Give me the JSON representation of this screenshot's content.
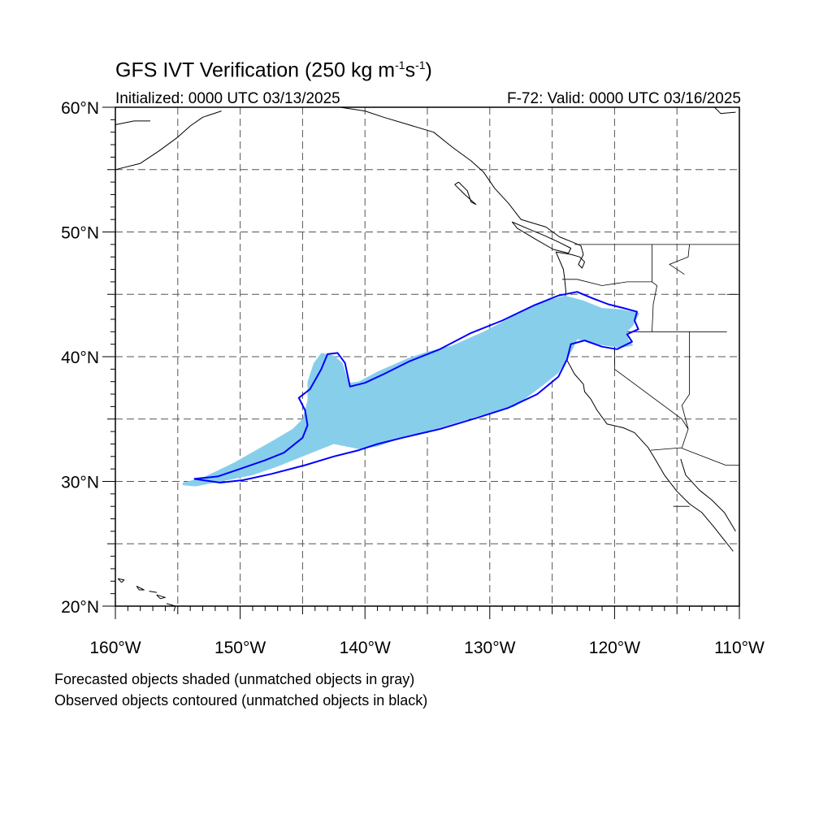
{
  "title": {
    "main": "GFS IVT Verification (250 kg m",
    "sup1": "-1",
    "mid": "s",
    "sup2": "-1",
    "end": ")"
  },
  "subtitle_left": "Initialized: 0000 UTC 03/13/2025",
  "subtitle_right": "F-72: Valid: 0000 UTC 03/16/2025",
  "notes": [
    "Forecasted objects shaded (unmatched objects in gray)",
    "Observed objects contoured (unmatched objects in black)"
  ],
  "map": {
    "lon_range": [
      -160,
      -110
    ],
    "lat_range": [
      20,
      60
    ],
    "lat_ticks": [
      {
        "value": 60,
        "label": "60°N"
      },
      {
        "value": 50,
        "label": "50°N"
      },
      {
        "value": 40,
        "label": "40°N"
      },
      {
        "value": 30,
        "label": "30°N"
      },
      {
        "value": 20,
        "label": "20°N"
      }
    ],
    "lon_ticks": [
      {
        "value": -160,
        "label": "160°W"
      },
      {
        "value": -150,
        "label": "150°W"
      },
      {
        "value": -140,
        "label": "140°W"
      },
      {
        "value": -130,
        "label": "130°W"
      },
      {
        "value": -120,
        "label": "120°W"
      },
      {
        "value": -110,
        "label": "110°W"
      }
    ],
    "grid_lons": [
      -155,
      -150,
      -145,
      -140,
      -135,
      -130,
      -125,
      -120,
      -115
    ],
    "grid_lats": [
      25,
      30,
      35,
      40,
      45,
      50,
      55
    ],
    "forecast_color": "#87ceeb",
    "observed_color": "#0000ff",
    "forecast_object": [
      [
        -154.6,
        29.7
      ],
      [
        -153.6,
        29.6
      ],
      [
        -151.5,
        30.0
      ],
      [
        -149.0,
        30.5
      ],
      [
        -147.0,
        31.2
      ],
      [
        -144.5,
        32.2
      ],
      [
        -142.5,
        33.0
      ],
      [
        -140.5,
        32.6
      ],
      [
        -139.0,
        32.8
      ],
      [
        -137.0,
        33.5
      ],
      [
        -134.0,
        34.3
      ],
      [
        -131.0,
        35.2
      ],
      [
        -128.0,
        36.0
      ],
      [
        -126.0,
        37.5
      ],
      [
        -124.5,
        38.7
      ],
      [
        -123.8,
        39.8
      ],
      [
        -123.3,
        40.7
      ],
      [
        -123.0,
        41.4
      ],
      [
        -121.5,
        41.0
      ],
      [
        -119.5,
        40.7
      ],
      [
        -118.5,
        40.9
      ],
      [
        -118.9,
        41.4
      ],
      [
        -119.0,
        42.0
      ],
      [
        -118.5,
        42.5
      ],
      [
        -118.0,
        43.5
      ],
      [
        -119.5,
        43.8
      ],
      [
        -121.0,
        43.9
      ],
      [
        -122.5,
        44.5
      ],
      [
        -124.0,
        44.9
      ],
      [
        -126.0,
        44.3
      ],
      [
        -128.0,
        43.3
      ],
      [
        -130.5,
        42.0
      ],
      [
        -133.0,
        40.9
      ],
      [
        -135.0,
        40.4
      ],
      [
        -136.5,
        39.9
      ],
      [
        -139.0,
        38.8
      ],
      [
        -140.5,
        38.0
      ],
      [
        -141.3,
        37.9
      ],
      [
        -141.8,
        39.5
      ],
      [
        -142.5,
        40.1
      ],
      [
        -143.5,
        40.3
      ],
      [
        -144.1,
        39.5
      ],
      [
        -144.6,
        38.0
      ],
      [
        -144.6,
        36.5
      ],
      [
        -145.0,
        35.0
      ],
      [
        -145.8,
        34.2
      ],
      [
        -147.5,
        33.2
      ],
      [
        -150.5,
        31.5
      ],
      [
        -153.0,
        30.3
      ],
      [
        -154.6,
        29.9
      ]
    ],
    "observed_contour": [
      [
        -153.7,
        30.2
      ],
      [
        -151.8,
        30.4
      ],
      [
        -150.0,
        31.0
      ],
      [
        -148.0,
        31.7
      ],
      [
        -146.5,
        32.3
      ],
      [
        -145.0,
        33.5
      ],
      [
        -144.6,
        34.5
      ],
      [
        -144.8,
        35.7
      ],
      [
        -145.3,
        36.7
      ],
      [
        -144.4,
        37.4
      ],
      [
        -143.5,
        39.0
      ],
      [
        -143.0,
        40.2
      ],
      [
        -142.2,
        40.3
      ],
      [
        -141.6,
        39.5
      ],
      [
        -141.2,
        37.6
      ],
      [
        -140.0,
        37.9
      ],
      [
        -138.5,
        38.6
      ],
      [
        -136.5,
        39.6
      ],
      [
        -134.0,
        40.6
      ],
      [
        -131.5,
        41.9
      ],
      [
        -129.0,
        42.9
      ],
      [
        -126.5,
        44.1
      ],
      [
        -124.5,
        44.9
      ],
      [
        -123.0,
        45.2
      ],
      [
        -121.8,
        44.7
      ],
      [
        -120.5,
        44.2
      ],
      [
        -119.3,
        43.9
      ],
      [
        -118.2,
        43.6
      ],
      [
        -118.4,
        42.9
      ],
      [
        -118.1,
        42.2
      ],
      [
        -119.0,
        41.8
      ],
      [
        -118.6,
        41.2
      ],
      [
        -119.8,
        40.6
      ],
      [
        -121.0,
        40.8
      ],
      [
        -122.4,
        41.3
      ],
      [
        -123.5,
        41.0
      ],
      [
        -123.8,
        39.8
      ],
      [
        -124.5,
        38.4
      ],
      [
        -126.2,
        37.0
      ],
      [
        -128.5,
        35.9
      ],
      [
        -131.0,
        35.1
      ],
      [
        -134.0,
        34.2
      ],
      [
        -137.0,
        33.5
      ],
      [
        -139.0,
        33.0
      ],
      [
        -140.5,
        32.5
      ],
      [
        -142.5,
        32.0
      ],
      [
        -144.8,
        31.3
      ],
      [
        -147.5,
        30.6
      ],
      [
        -149.8,
        30.1
      ],
      [
        -151.6,
        29.9
      ],
      [
        -153.7,
        30.2
      ]
    ],
    "coastlines": [
      [
        [
          -124.7,
          48.4
        ],
        [
          -124.1,
          47.0
        ],
        [
          -124.0,
          46.2
        ],
        [
          -123.9,
          45.2
        ],
        [
          -124.1,
          43.7
        ],
        [
          -124.5,
          42.8
        ],
        [
          -124.2,
          41.7
        ],
        [
          -124.1,
          40.8
        ],
        [
          -123.8,
          39.7
        ],
        [
          -123.2,
          38.6
        ],
        [
          -122.5,
          37.8
        ],
        [
          -122.4,
          37.2
        ],
        [
          -121.9,
          36.6
        ],
        [
          -121.4,
          35.7
        ],
        [
          -120.6,
          34.6
        ],
        [
          -119.3,
          34.3
        ],
        [
          -118.4,
          33.9
        ],
        [
          -117.3,
          32.7
        ],
        [
          -116.7,
          31.7
        ],
        [
          -116.0,
          30.5
        ],
        [
          -115.0,
          29.2
        ],
        [
          -114.0,
          28.2
        ],
        [
          -113.0,
          27.5
        ],
        [
          -112.0,
          26.3
        ],
        [
          -110.5,
          24.4
        ]
      ],
      [
        [
          -114.7,
          31.8
        ],
        [
          -114.3,
          30.5
        ],
        [
          -113.2,
          29.3
        ],
        [
          -112.2,
          28.5
        ],
        [
          -111.2,
          27.5
        ],
        [
          -110.3,
          26.0
        ]
      ],
      [
        [
          -124.7,
          48.4
        ],
        [
          -123.5,
          48.2
        ],
        [
          -122.8,
          48.0
        ],
        [
          -122.4,
          47.6
        ],
        [
          -122.6,
          47.1
        ],
        [
          -122.9,
          47.4
        ],
        [
          -122.5,
          48.2
        ],
        [
          -122.7,
          48.9
        ],
        [
          -123.4,
          49.2
        ],
        [
          -124.4,
          49.6
        ],
        [
          -125.5,
          50.4
        ],
        [
          -127.5,
          51.0
        ],
        [
          -128.5,
          52.3
        ],
        [
          -129.6,
          53.5
        ],
        [
          -130.5,
          54.8
        ],
        [
          -131.5,
          55.7
        ],
        [
          -133.0,
          56.8
        ],
        [
          -134.5,
          58.0
        ],
        [
          -136.5,
          58.6
        ],
        [
          -138.5,
          59.2
        ],
        [
          -140.0,
          59.7
        ],
        [
          -142.0,
          60.0
        ]
      ],
      [
        [
          -124.9,
          48.6
        ],
        [
          -123.7,
          48.3
        ],
        [
          -123.5,
          48.7
        ],
        [
          -124.5,
          49.2
        ],
        [
          -125.6,
          49.7
        ],
        [
          -126.8,
          50.2
        ],
        [
          -128.2,
          50.8
        ],
        [
          -127.8,
          50.3
        ],
        [
          -126.3,
          49.4
        ],
        [
          -124.9,
          48.6
        ]
      ],
      [
        [
          -132.5,
          54.0
        ],
        [
          -131.8,
          53.3
        ],
        [
          -131.5,
          52.4
        ],
        [
          -131.1,
          52.2
        ],
        [
          -132.0,
          53.0
        ],
        [
          -132.8,
          53.8
        ],
        [
          -132.5,
          54.0
        ]
      ],
      [
        [
          -160.0,
          55.0
        ],
        [
          -158.0,
          55.5
        ],
        [
          -156.5,
          56.5
        ],
        [
          -155.0,
          57.6
        ],
        [
          -154.0,
          58.5
        ],
        [
          -153.0,
          59.2
        ],
        [
          -151.5,
          59.7
        ]
      ],
      [
        [
          -160.0,
          58.6
        ],
        [
          -158.5,
          58.9
        ],
        [
          -157.2,
          58.9
        ]
      ],
      [
        [
          -112.0,
          60.0
        ],
        [
          -111.5,
          59.5
        ],
        [
          -110.3,
          59.6
        ]
      ],
      [
        [
          -155.9,
          20.2
        ],
        [
          -155.5,
          20.1
        ],
        [
          -155.2,
          20.0
        ],
        [
          -155.3,
          19.6
        ]
      ],
      [
        [
          -156.7,
          20.9
        ],
        [
          -156.0,
          20.7
        ],
        [
          -156.4,
          20.6
        ],
        [
          -156.7,
          20.9
        ]
      ],
      [
        [
          -157.3,
          21.2
        ],
        [
          -156.7,
          21.1
        ],
        [
          -157.3,
          21.2
        ]
      ],
      [
        [
          -159.8,
          22.2
        ],
        [
          -159.3,
          22.1
        ],
        [
          -159.5,
          21.9
        ],
        [
          -159.8,
          22.2
        ]
      ],
      [
        [
          -158.3,
          21.6
        ],
        [
          -157.7,
          21.3
        ],
        [
          -158.1,
          21.3
        ],
        [
          -158.3,
          21.6
        ]
      ]
    ],
    "borders": [
      [
        [
          -123.2,
          49.0
        ],
        [
          -110.0,
          49.0
        ]
      ],
      [
        [
          -124.2,
          46.2
        ],
        [
          -123.0,
          46.2
        ],
        [
          -121.0,
          45.7
        ],
        [
          -119.0,
          46.0
        ],
        [
          -117.0,
          46.0
        ]
      ],
      [
        [
          -117.0,
          49.0
        ],
        [
          -117.0,
          46.0
        ],
        [
          -116.6,
          45.7
        ],
        [
          -116.9,
          44.2
        ],
        [
          -117.0,
          42.0
        ]
      ],
      [
        [
          -124.2,
          42.0
        ],
        [
          -111.0,
          42.0
        ]
      ],
      [
        [
          -120.0,
          42.0
        ],
        [
          -120.0,
          39.0
        ],
        [
          -114.6,
          35.0
        ],
        [
          -114.1,
          34.2
        ]
      ],
      [
        [
          -114.0,
          42.0
        ],
        [
          -114.0,
          37.0
        ],
        [
          -114.6,
          36.1
        ],
        [
          -114.1,
          34.2
        ],
        [
          -114.6,
          32.7
        ]
      ],
      [
        [
          -117.1,
          32.5
        ],
        [
          -114.7,
          32.7
        ],
        [
          -111.1,
          31.3
        ],
        [
          -110.0,
          31.3
        ]
      ],
      [
        [
          -111.0,
          45.0
        ],
        [
          -110.0,
          45.0
        ]
      ],
      [
        [
          -114.0,
          49.0
        ],
        [
          -114.1,
          48.0
        ],
        [
          -115.6,
          47.4
        ],
        [
          -114.4,
          46.6
        ]
      ],
      [
        [
          -115.3,
          28.0
        ],
        [
          -114.0,
          28.0
        ]
      ]
    ]
  }
}
